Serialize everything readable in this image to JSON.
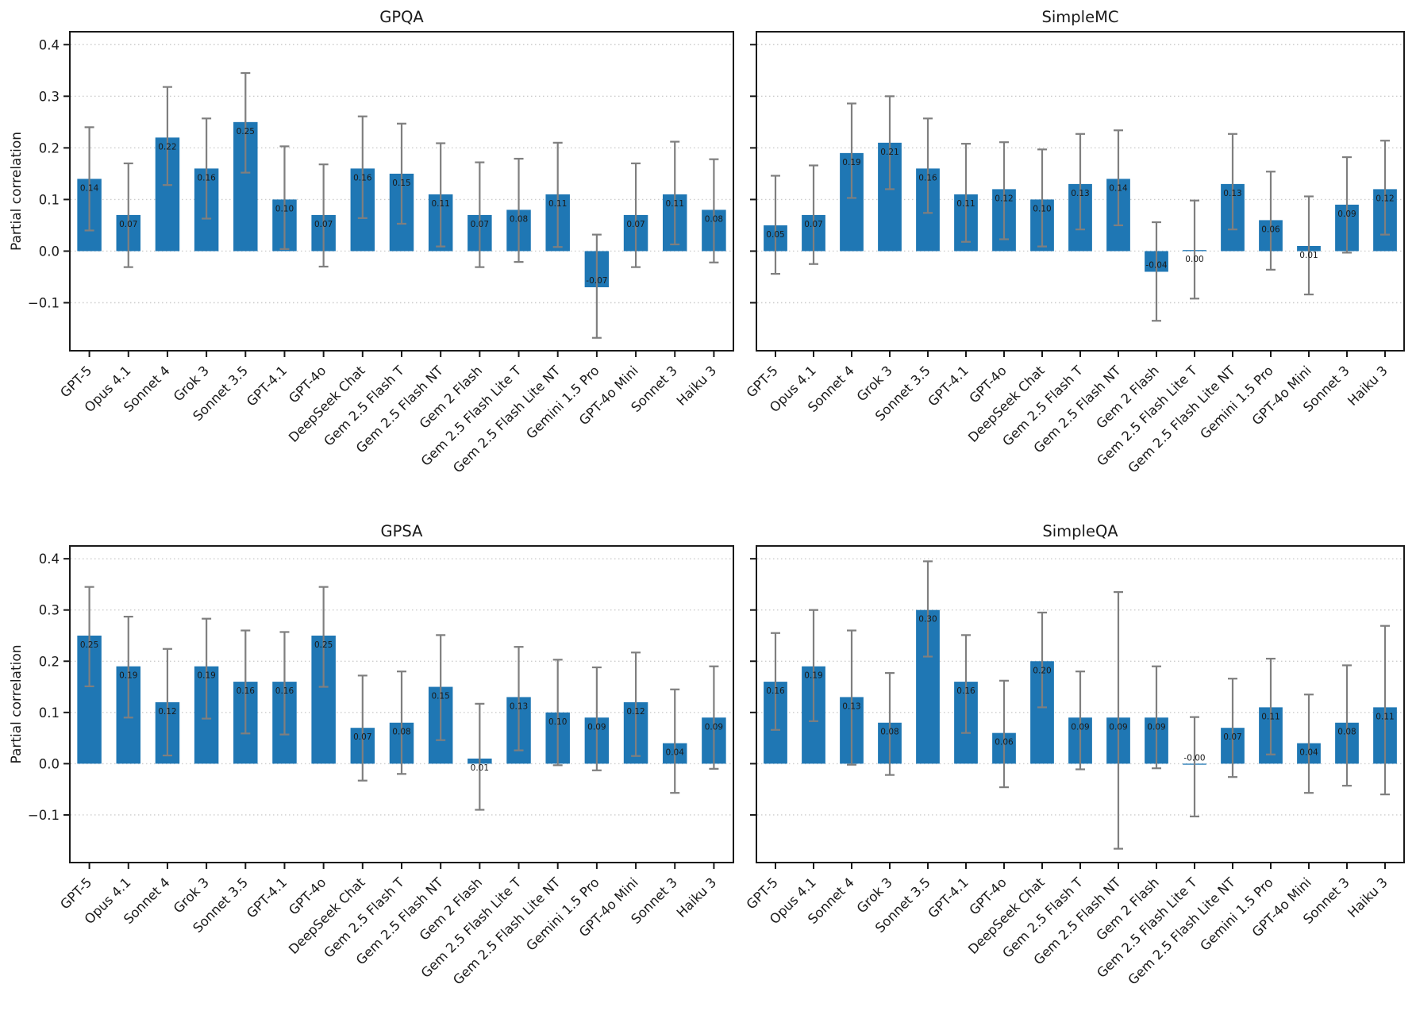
{
  "figure": {
    "background": "#ffffff",
    "bar_color": "#1f77b4",
    "error_bar_color": "#7f7f7f",
    "grid_color": "#cdcdcd",
    "spine_color": "#1a1a1a",
    "text_color": "#1a1a1a",
    "ytick_labels": [
      "0.4",
      "0.3",
      "0.2",
      "0.1",
      "0.0",
      "−0.1"
    ],
    "ytick_values": [
      0.4,
      0.3,
      0.2,
      0.1,
      0.0,
      -0.1
    ]
  },
  "chart_data": [
    {
      "type": "bar",
      "title": "GPQA",
      "ylabel": "Partial correlation",
      "ylim": [
        -0.193,
        0.425
      ],
      "grid": true,
      "categories": [
        "GPT-5",
        "Opus 4.1",
        "Sonnet 4",
        "Grok 3",
        "Sonnet 3.5",
        "GPT-4.1",
        "GPT-4o",
        "DeepSeek Chat",
        "Gem 2.5 Flash T",
        "Gem 2.5 Flash NT",
        "Gem 2 Flash",
        "Gem 2.5 Flash Lite T",
        "Gem 2.5 Flash Lite NT",
        "Gemini 1.5 Pro",
        "GPT-4o Mini",
        "Sonnet 3",
        "Haiku 3"
      ],
      "values": [
        0.14,
        0.07,
        0.22,
        0.16,
        0.25,
        0.1,
        0.07,
        0.16,
        0.15,
        0.11,
        0.07,
        0.08,
        0.11,
        -0.07,
        0.07,
        0.11,
        0.08
      ],
      "bar_labels": [
        "0.14",
        "0.07",
        "0.22",
        "0.16",
        "0.25",
        "0.10",
        "0.07",
        "0.16",
        "0.15",
        "0.11",
        "0.07",
        "0.08",
        "0.11",
        "-0.07",
        "0.07",
        "0.11",
        "0.08"
      ],
      "err_low": [
        0.04,
        -0.031,
        0.128,
        0.063,
        0.152,
        0.004,
        -0.03,
        0.064,
        0.053,
        0.009,
        -0.031,
        -0.021,
        0.008,
        -0.168,
        -0.031,
        0.013,
        -0.022
      ],
      "err_high": [
        0.24,
        0.17,
        0.318,
        0.257,
        0.345,
        0.203,
        0.168,
        0.261,
        0.247,
        0.209,
        0.172,
        0.179,
        0.21,
        0.032,
        0.17,
        0.212,
        0.178
      ]
    },
    {
      "type": "bar",
      "title": "SimpleMC",
      "ylim": [
        -0.193,
        0.425
      ],
      "grid": true,
      "categories": [
        "GPT-5",
        "Opus 4.1",
        "Sonnet 4",
        "Grok 3",
        "Sonnet 3.5",
        "GPT-4.1",
        "GPT-4o",
        "DeepSeek Chat",
        "Gem 2.5 Flash T",
        "Gem 2.5 Flash NT",
        "Gem 2 Flash",
        "Gem 2.5 Flash Lite T",
        "Gem 2.5 Flash Lite NT",
        "Gemini 1.5 Pro",
        "GPT-4o Mini",
        "Sonnet 3",
        "Haiku 3"
      ],
      "values": [
        0.05,
        0.07,
        0.19,
        0.21,
        0.16,
        0.11,
        0.12,
        0.1,
        0.13,
        0.14,
        -0.04,
        0.002,
        0.13,
        0.06,
        0.01,
        0.09,
        0.12
      ],
      "bar_labels": [
        "0.05",
        "0.07",
        "0.19",
        "0.21",
        "0.16",
        "0.11",
        "0.12",
        "0.10",
        "0.13",
        "0.14",
        "-0.04",
        "0.00",
        "0.13",
        "0.06",
        "0.01",
        "0.09",
        "0.12"
      ],
      "err_low": [
        -0.044,
        -0.025,
        0.103,
        0.12,
        0.074,
        0.018,
        0.023,
        0.009,
        0.042,
        0.05,
        -0.135,
        -0.092,
        0.042,
        -0.036,
        -0.084,
        -0.003,
        0.032
      ],
      "err_high": [
        0.146,
        0.166,
        0.286,
        0.3,
        0.257,
        0.208,
        0.211,
        0.197,
        0.227,
        0.234,
        0.056,
        0.098,
        0.227,
        0.154,
        0.106,
        0.182,
        0.214
      ]
    },
    {
      "type": "bar",
      "title": "GPSA",
      "ylabel": "Partial correlation",
      "ylim": [
        -0.193,
        0.425
      ],
      "grid": true,
      "categories": [
        "GPT-5",
        "Opus 4.1",
        "Sonnet 4",
        "Grok 3",
        "Sonnet 3.5",
        "GPT-4.1",
        "GPT-4o",
        "DeepSeek Chat",
        "Gem 2.5 Flash T",
        "Gem 2.5 Flash NT",
        "Gem 2 Flash",
        "Gem 2.5 Flash Lite T",
        "Gem 2.5 Flash Lite NT",
        "Gemini 1.5 Pro",
        "GPT-4o Mini",
        "Sonnet 3",
        "Haiku 3"
      ],
      "values": [
        0.25,
        0.19,
        0.12,
        0.19,
        0.16,
        0.16,
        0.25,
        0.07,
        0.08,
        0.15,
        0.01,
        0.13,
        0.1,
        0.09,
        0.12,
        0.04,
        0.09
      ],
      "bar_labels": [
        "0.25",
        "0.19",
        "0.12",
        "0.19",
        "0.16",
        "0.16",
        "0.25",
        "0.07",
        "0.08",
        "0.15",
        "0.01",
        "0.13",
        "0.10",
        "0.09",
        "0.12",
        "0.04",
        "0.09"
      ],
      "err_low": [
        0.151,
        0.09,
        0.016,
        0.088,
        0.059,
        0.057,
        0.15,
        -0.033,
        -0.02,
        0.046,
        -0.09,
        0.026,
        -0.003,
        -0.013,
        0.015,
        -0.057,
        -0.01
      ],
      "err_high": [
        0.345,
        0.287,
        0.224,
        0.283,
        0.26,
        0.257,
        0.345,
        0.172,
        0.18,
        0.251,
        0.117,
        0.228,
        0.203,
        0.188,
        0.217,
        0.145,
        0.19
      ]
    },
    {
      "type": "bar",
      "title": "SimpleQA",
      "ylim": [
        -0.193,
        0.425
      ],
      "grid": true,
      "categories": [
        "GPT-5",
        "Opus 4.1",
        "Sonnet 4",
        "Grok 3",
        "Sonnet 3.5",
        "GPT-4.1",
        "GPT-4o",
        "DeepSeek Chat",
        "Gem 2.5 Flash T",
        "Gem 2.5 Flash NT",
        "Gem 2 Flash",
        "Gem 2.5 Flash Lite T",
        "Gem 2.5 Flash Lite NT",
        "Gemini 1.5 Pro",
        "GPT-4o Mini",
        "Sonnet 3",
        "Haiku 3"
      ],
      "values": [
        0.16,
        0.19,
        0.13,
        0.08,
        0.3,
        0.16,
        0.06,
        0.2,
        0.09,
        0.09,
        0.09,
        -0.002,
        0.07,
        0.11,
        0.04,
        0.08,
        0.11
      ],
      "bar_labels": [
        "0.16",
        "0.19",
        "0.13",
        "0.08",
        "0.30",
        "0.16",
        "0.06",
        "0.20",
        "0.09",
        "0.09",
        "0.09",
        "-0.00",
        "0.07",
        "0.11",
        "0.04",
        "0.08",
        "0.11"
      ],
      "err_low": [
        0.066,
        0.083,
        -0.002,
        -0.022,
        0.209,
        0.06,
        -0.046,
        0.11,
        -0.011,
        -0.166,
        -0.009,
        -0.103,
        -0.026,
        0.018,
        -0.057,
        -0.043,
        -0.06
      ],
      "err_high": [
        0.255,
        0.3,
        0.26,
        0.177,
        0.395,
        0.251,
        0.162,
        0.295,
        0.18,
        0.335,
        0.19,
        0.091,
        0.166,
        0.205,
        0.135,
        0.192,
        0.269
      ]
    }
  ]
}
